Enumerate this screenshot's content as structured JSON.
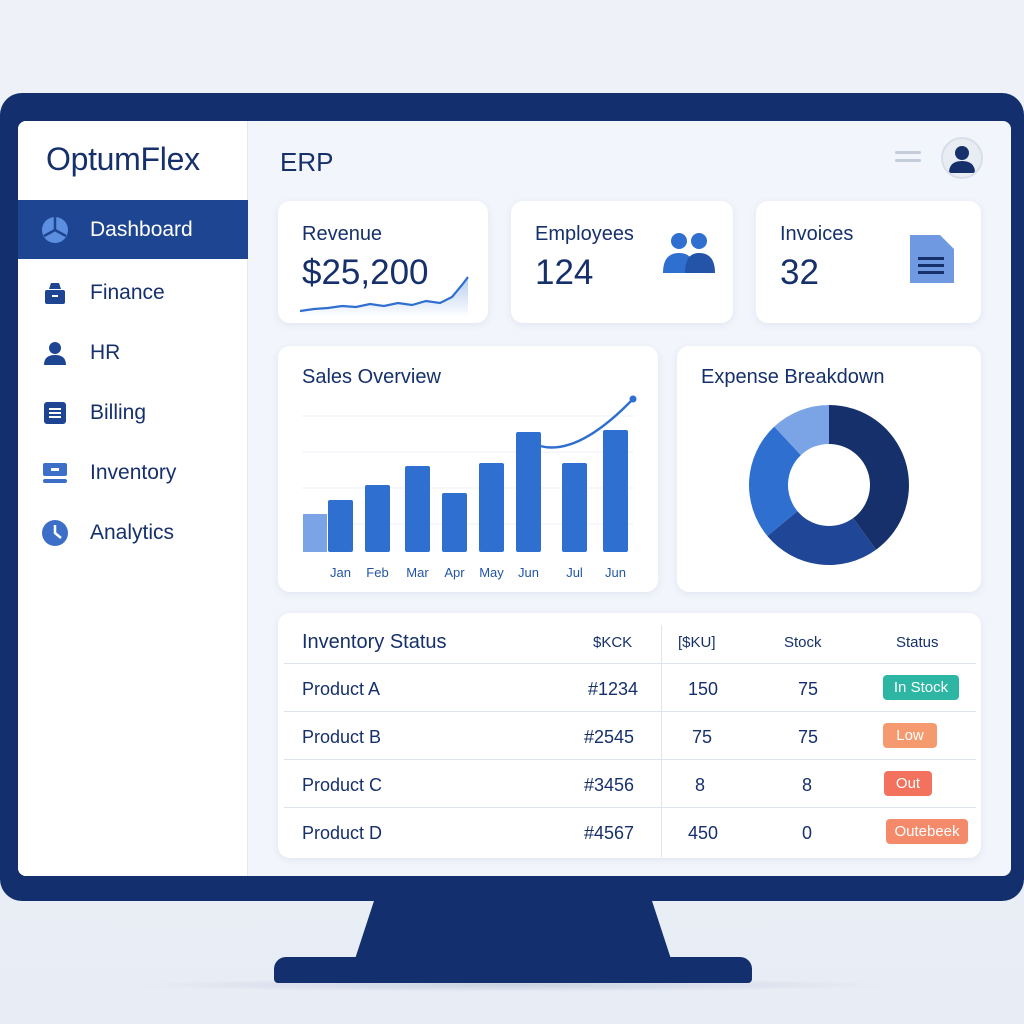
{
  "app": {
    "brand": "OptumFlex",
    "page_title": "ERP"
  },
  "sidebar": {
    "items": [
      {
        "label": "Dashboard",
        "icon": "pie-chart-icon",
        "active": true
      },
      {
        "label": "Finance",
        "icon": "briefcase-icon",
        "active": false
      },
      {
        "label": "HR",
        "icon": "person-icon",
        "active": false
      },
      {
        "label": "Billing",
        "icon": "document-icon",
        "active": false
      },
      {
        "label": "Inventory",
        "icon": "box-icon",
        "active": false
      },
      {
        "label": "Analytics",
        "icon": "clock-icon",
        "active": false
      }
    ]
  },
  "kpis": {
    "revenue": {
      "label": "Revenue",
      "value": "$25,200",
      "icon": "sparkline"
    },
    "employees": {
      "label": "Employees",
      "value": "124",
      "icon": "people-icon"
    },
    "invoices": {
      "label": "Invoices",
      "value": "32",
      "icon": "invoice-icon"
    }
  },
  "sales": {
    "title": "Sales Overview",
    "chart_data": {
      "type": "bar",
      "categories": [
        "Jan",
        "Feb",
        "Mar",
        "Apr",
        "May",
        "Jun",
        "Jul",
        "Jun"
      ],
      "series": [
        {
          "values": [
            52,
            67,
            86,
            59,
            89,
            120,
            89,
            122
          ]
        },
        {
          "values": [
            null,
            null,
            null,
            null,
            null,
            104,
            110,
            152
          ]
        }
      ],
      "extra_bar_before_first": 38,
      "grid": true,
      "legend": "none"
    }
  },
  "expense": {
    "title": "Expense Breakdown",
    "chart_data": {
      "type": "pie",
      "variant": "donut",
      "values": [
        40,
        24,
        24,
        12
      ],
      "colors": [
        "#16306c",
        "#1f4697",
        "#2f6fd0",
        "#7ba4e6"
      ]
    }
  },
  "inventory": {
    "title": "Inventory Status",
    "columns": [
      "$KCK",
      "[$KU]",
      "Stock",
      "Status"
    ],
    "rows": [
      {
        "name": "Product A",
        "code": "#1234",
        "sku": "150",
        "stock": "75",
        "status": "In Stock",
        "status_color": "#2db6a3"
      },
      {
        "name": "Product B",
        "code": "#2545",
        "sku": "75",
        "stock": "75",
        "status": "Low",
        "status_color": "#f59a6e"
      },
      {
        "name": "Product C",
        "code": "#3456",
        "sku": "8",
        "stock": "8",
        "status": "Out",
        "status_color": "#f2725e"
      },
      {
        "name": "Product D",
        "code": "#4567",
        "sku": "450",
        "stock": "0",
        "status": "Outebeek",
        "status_color": "#f58a6a"
      }
    ]
  },
  "colors": {
    "navy": "#16306c",
    "accent": "#2f6fd0",
    "sidebar_active": "#1d4592"
  }
}
